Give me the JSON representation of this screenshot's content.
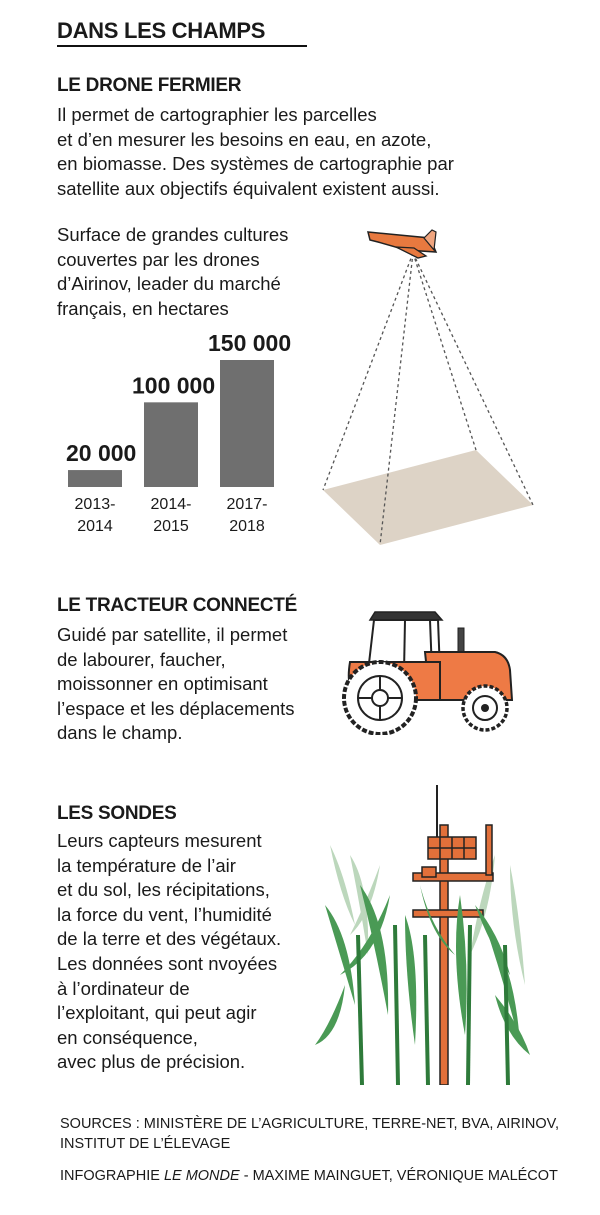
{
  "main_title": "DANS LES CHAMPS",
  "drone": {
    "title": "LE DRONE FERMIER",
    "description": "Il permet de cartographier les parcelles\net d’en mesurer les besoins en eau, en azote,\nen biomasse. Des systèmes de cartographie par\nsatellite aux objectifs équivalent existent aussi."
  },
  "chart_data": {
    "type": "bar",
    "title": "Surface de grandes cultures\ncouvertes par les drones\nd’Airinov,  leader du marché\nfrançais, en hectares",
    "categories": [
      "2013-\n2014",
      "2014-\n2015",
      "2017-\n2018"
    ],
    "values": [
      20000,
      100000,
      150000
    ],
    "value_labels": [
      "20 000",
      "100 000",
      "150 000"
    ],
    "ylim": [
      0,
      150000
    ],
    "bar_color": "#6f6f6f",
    "grid": false,
    "legend": "none"
  },
  "tractor": {
    "title": "LE TRACTEUR CONNECTÉ",
    "description": "Guidé par satellite, il permet\nde labourer, faucher,\nmoissonner en optimisant\nl’espace et les déplacements\ndans le champ.",
    "color": "#ee7a45"
  },
  "sondes": {
    "title": "LES SONDES",
    "description": "Leurs capteurs mesurent\nla température de l’air\net du sol, les récipitations,\nla force du vent, l’humidité\nde la terre et des végétaux.\nLes données sont nvoyées\nà l’ordinateur de\nl’exploitant, qui peut agir\nen conséquence,\navec plus de précision.",
    "plant_color": "#4a9a55",
    "probe_color": "#e2703a"
  },
  "footer": {
    "sources": "SOURCES : MINISTÈRE DE L’AGRICULTURE, TERRE-NET, BVA, AIRINOV, INSTITUT DE L’ÉLEVAGE",
    "credits_prefix": "INFOGRAPHIE ",
    "credits_italic": "LE MONDE",
    "credits_suffix": " - MAXIME MAINGUET, VÉRONIQUE MALÉCOT"
  },
  "colors": {
    "field": "#ddd3c6",
    "drone": "#e8793f",
    "text": "#1a1a1a"
  }
}
